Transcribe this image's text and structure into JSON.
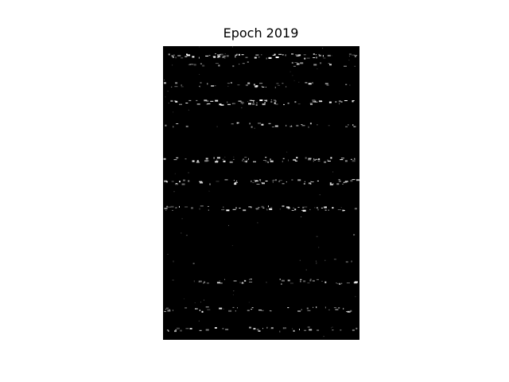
{
  "figure": {
    "title": "Epoch 2019",
    "background_color": "#ffffff",
    "image_background_color": "#000000",
    "speckle_color": "#ffffff",
    "bands": [
      {
        "density": 0.95,
        "intensity": 0.95
      },
      {
        "density": 0.35,
        "intensity": 0.55
      },
      {
        "density": 0.55,
        "intensity": 0.8
      },
      {
        "density": 0.95,
        "intensity": 0.9
      },
      {
        "density": 0.4,
        "intensity": 0.7
      },
      {
        "density": 0.9,
        "intensity": 0.9
      },
      {
        "density": 0.85,
        "intensity": 0.85
      },
      {
        "density": 0.85,
        "intensity": 0.85
      },
      {
        "density": 0.05,
        "intensity": 0.3
      },
      {
        "density": 0.1,
        "intensity": 0.4
      },
      {
        "density": 0.6,
        "intensity": 0.75
      },
      {
        "density": 0.6,
        "intensity": 0.8
      },
      {
        "density": 0.5,
        "intensity": 0.65
      }
    ]
  }
}
